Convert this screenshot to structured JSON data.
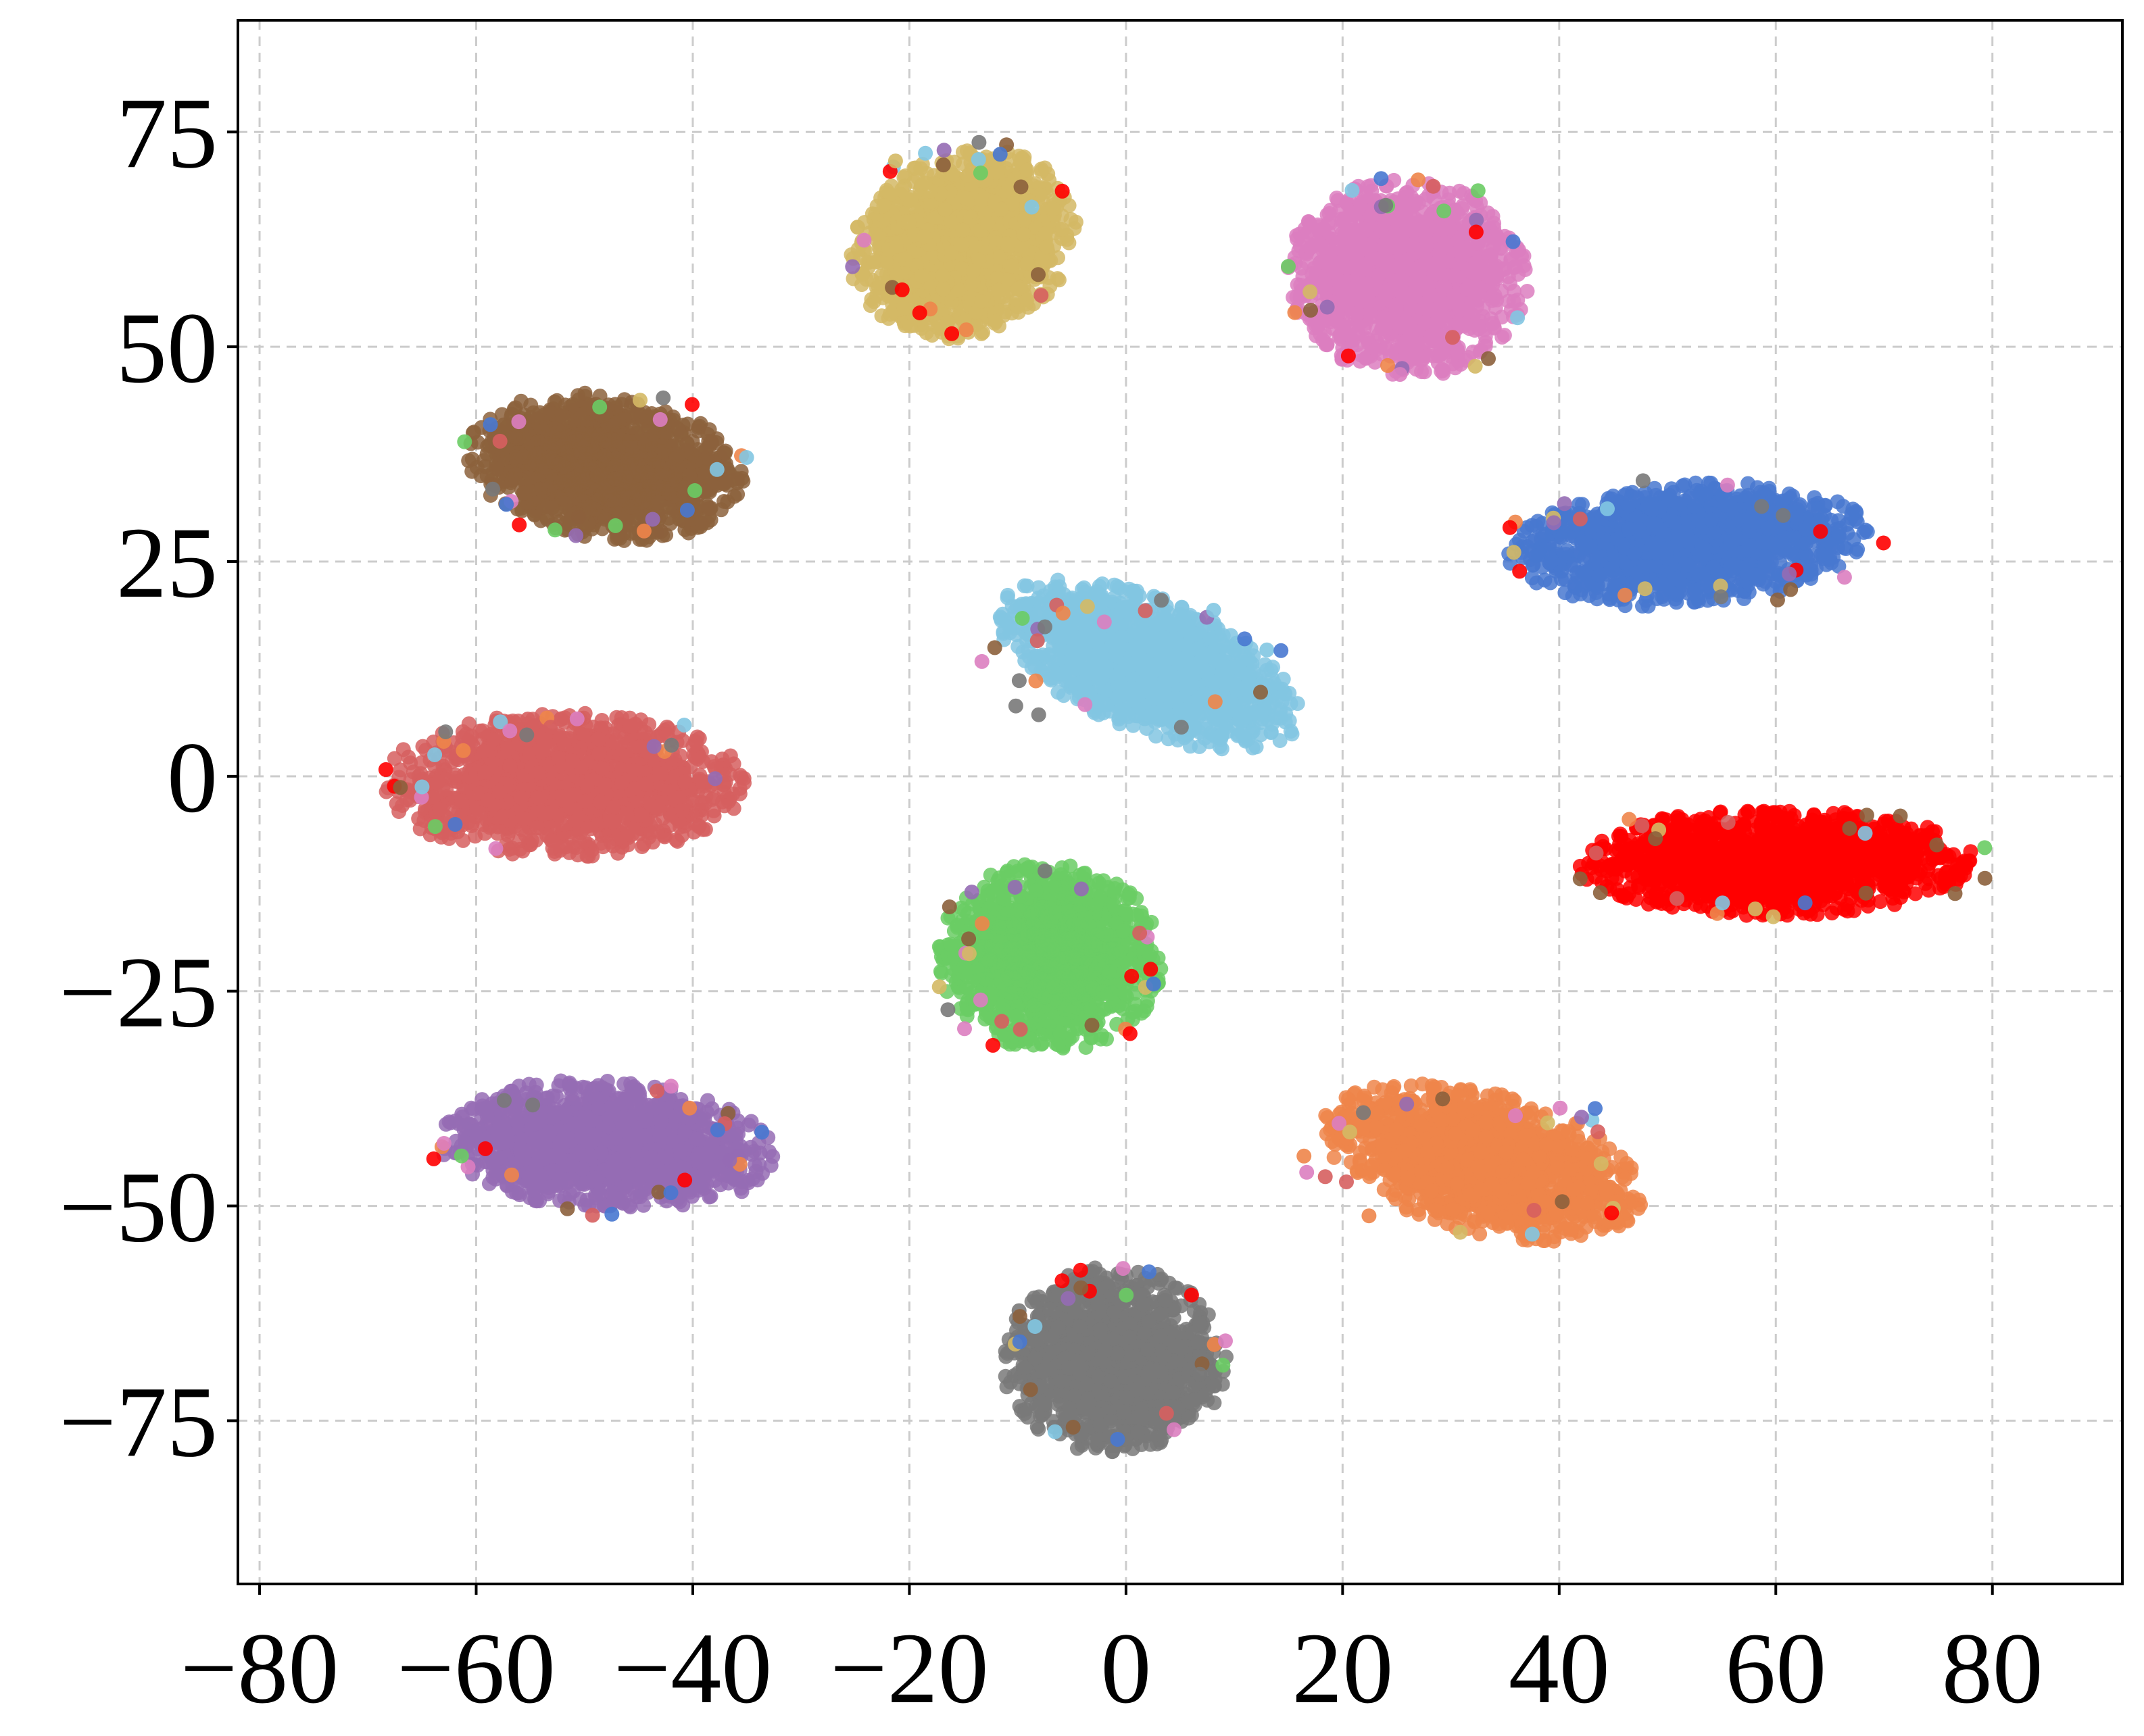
{
  "chart_data": {
    "type": "scatter",
    "title": "",
    "xlabel": "",
    "ylabel": "",
    "xlim": [
      -82,
      92
    ],
    "ylim": [
      -94,
      88
    ],
    "xticks": [
      -80,
      -60,
      -40,
      -20,
      0,
      20,
      40,
      60,
      80
    ],
    "yticks": [
      -75,
      -50,
      -25,
      0,
      25,
      50,
      75
    ],
    "xtick_labels": [
      "−80",
      "−60",
      "−40",
      "−20",
      "0",
      "20",
      "40",
      "60",
      "80"
    ],
    "ytick_labels": [
      "−75",
      "−50",
      "−25",
      "0",
      "25",
      "50",
      "75"
    ],
    "grid": true,
    "legend": "none",
    "point_alpha": 0.85,
    "clusters": [
      {
        "color": "#d4b965",
        "center": [
          -15,
          62
        ],
        "spread": [
          7.5,
          9
        ],
        "rotation_deg": -35,
        "count": 1500
      },
      {
        "color": "#dc7ec0",
        "center": [
          26,
          58
        ],
        "spread": [
          8.5,
          9
        ],
        "rotation_deg": 20,
        "count": 1500
      },
      {
        "color": "#8c613c",
        "center": [
          -48,
          36
        ],
        "spread": [
          10,
          6.5
        ],
        "rotation_deg": -12,
        "count": 1500
      },
      {
        "color": "#4878d0",
        "center": [
          52,
          27
        ],
        "spread": [
          13,
          5.5
        ],
        "rotation_deg": 5,
        "count": 1500
      },
      {
        "color": "#82c6e2",
        "center": [
          2,
          13
        ],
        "spread": [
          12,
          5.8
        ],
        "rotation_deg": -30,
        "count": 1500
      },
      {
        "color": "#d65f5f",
        "center": [
          -52,
          -1
        ],
        "spread": [
          13,
          6.5
        ],
        "rotation_deg": 0,
        "count": 1500
      },
      {
        "color": "#ff0000",
        "center": [
          60,
          -10
        ],
        "spread": [
          14.5,
          4.8
        ],
        "rotation_deg": 0,
        "count": 1500
      },
      {
        "color": "#6acc64",
        "center": [
          -7,
          -21
        ],
        "spread": [
          8,
          8.5
        ],
        "rotation_deg": 10,
        "count": 1500
      },
      {
        "color": "#956cb4",
        "center": [
          -48,
          -43
        ],
        "spread": [
          12,
          5.8
        ],
        "rotation_deg": -5,
        "count": 1500
      },
      {
        "color": "#ee854a",
        "center": [
          33,
          -45
        ],
        "spread": [
          12,
          6.2
        ],
        "rotation_deg": -20,
        "count": 1500
      },
      {
        "color": "#797979",
        "center": [
          -1,
          -68
        ],
        "spread": [
          8,
          8.5
        ],
        "rotation_deg": 0,
        "count": 1500
      }
    ]
  }
}
